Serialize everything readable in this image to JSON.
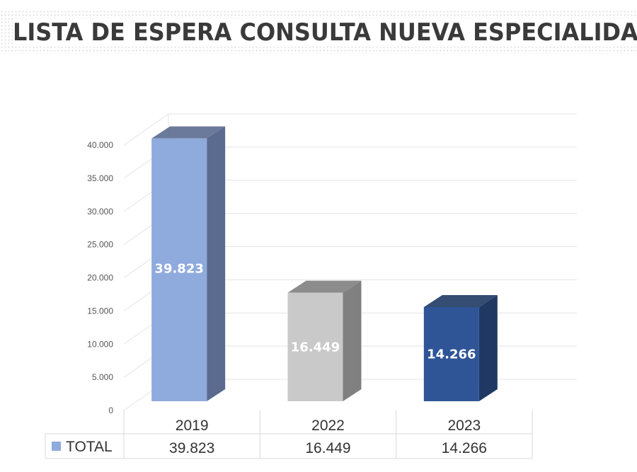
{
  "title": "LISTA DE ESPERA CONSULTA NUEVA ESPECIALIDAD",
  "chart_data": {
    "type": "bar",
    "title": "",
    "xlabel": "",
    "ylabel": "",
    "categories": [
      "2019",
      "2022",
      "2023"
    ],
    "series": [
      {
        "name": "TOTAL",
        "values": [
          39823,
          16449,
          14266
        ]
      }
    ],
    "value_labels": [
      "39.823",
      "16.449",
      "14.266"
    ],
    "ylim": [
      0,
      40000
    ],
    "y_ticks": [
      0,
      5000,
      10000,
      15000,
      20000,
      25000,
      30000,
      35000,
      40000
    ],
    "y_tick_labels": [
      "0",
      "5.000",
      "10.000",
      "15.000",
      "20.000",
      "25.000",
      "30.000",
      "35.000",
      "40.000"
    ],
    "bar_colors": [
      "#8faadc",
      "#c9c9c9",
      "#2f5597"
    ],
    "bar_side_colors": [
      "#5b6b8f",
      "#808080",
      "#1f3864"
    ],
    "legend_color": "#8faadc",
    "grid": true,
    "data_table": true
  }
}
